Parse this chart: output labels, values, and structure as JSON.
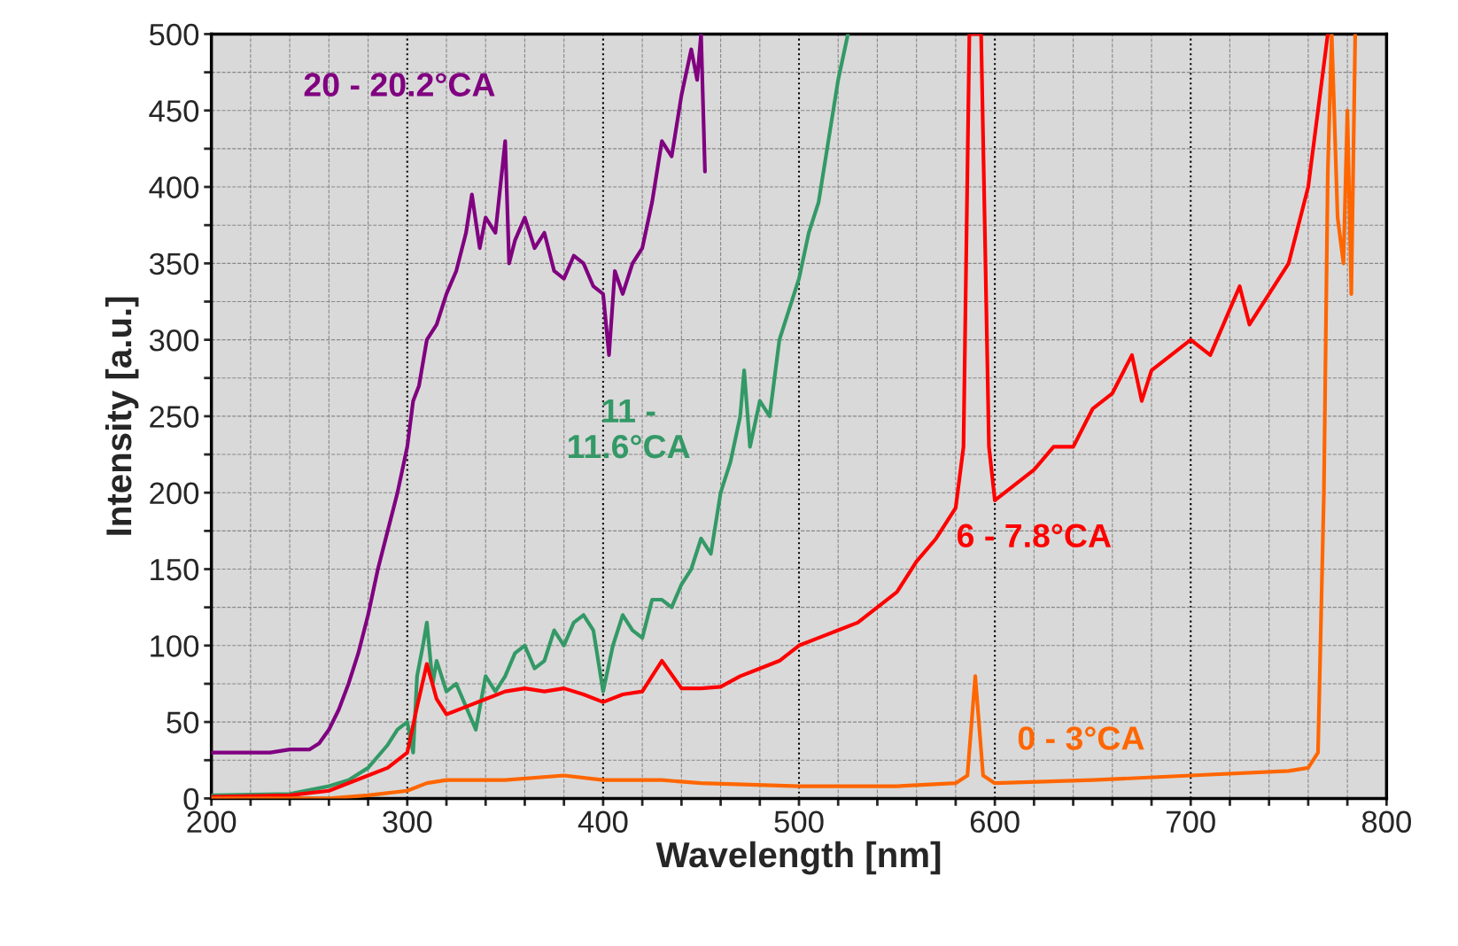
{
  "chart_data": {
    "type": "line",
    "xlabel": "Wavelength [nm]",
    "ylabel": "Intensity [a.u.]",
    "xlim": [
      200,
      800
    ],
    "ylim": [
      0,
      500
    ],
    "xticks": [
      200,
      {
        "value": 220,
        "label": null
      },
      {
        "value": 240,
        "label": null
      },
      {
        "value": 260,
        "label": null
      },
      {
        "value": 280,
        "label": null
      },
      300,
      {
        "value": 320,
        "label": null
      },
      {
        "value": 340,
        "label": null
      },
      {
        "value": 360,
        "label": null
      },
      {
        "value": 380,
        "label": null
      },
      400,
      {
        "value": 420,
        "label": null
      },
      {
        "value": 440,
        "label": null
      },
      {
        "value": 460,
        "label": null
      },
      {
        "value": 480,
        "label": null
      },
      500,
      {
        "value": 520,
        "label": null
      },
      {
        "value": 540,
        "label": null
      },
      {
        "value": 560,
        "label": null
      },
      {
        "value": 580,
        "label": null
      },
      600,
      {
        "value": 620,
        "label": null
      },
      {
        "value": 640,
        "label": null
      },
      {
        "value": 660,
        "label": null
      },
      {
        "value": 680,
        "label": null
      },
      700,
      {
        "value": 720,
        "label": null
      },
      {
        "value": 740,
        "label": null
      },
      {
        "value": 760,
        "label": null
      },
      {
        "value": 780,
        "label": null
      },
      800
    ],
    "yticks": [
      0,
      {
        "value": 25,
        "label": null
      },
      50,
      {
        "value": 75,
        "label": null
      },
      100,
      {
        "value": 125,
        "label": null
      },
      150,
      {
        "value": 175,
        "label": null
      },
      200,
      {
        "value": 225,
        "label": null
      },
      250,
      {
        "value": 275,
        "label": null
      },
      300,
      {
        "value": 325,
        "label": null
      },
      350,
      {
        "value": 375,
        "label": null
      },
      400,
      {
        "value": 425,
        "label": null
      },
      450,
      {
        "value": 475,
        "label": null
      },
      500
    ],
    "grid": true,
    "legend": false,
    "marker": "none",
    "line_style": "solid",
    "series": [
      {
        "name": "20 - 20.2°CA",
        "color": "#800080",
        "x": [
          200,
          230,
          240,
          250,
          255,
          260,
          265,
          270,
          275,
          280,
          285,
          290,
          295,
          300,
          303,
          306,
          310,
          315,
          320,
          325,
          330,
          333,
          337,
          340,
          345,
          350,
          352,
          355,
          360,
          365,
          370,
          375,
          380,
          385,
          390,
          395,
          400,
          403,
          406,
          410,
          415,
          420,
          425,
          430,
          435,
          440,
          445,
          448,
          450,
          452
        ],
        "values": [
          30,
          30,
          32,
          32,
          36,
          45,
          58,
          75,
          95,
          120,
          150,
          175,
          200,
          230,
          260,
          270,
          300,
          310,
          330,
          345,
          370,
          395,
          360,
          380,
          370,
          430,
          350,
          365,
          380,
          360,
          370,
          345,
          340,
          355,
          350,
          335,
          330,
          290,
          345,
          330,
          350,
          360,
          390,
          430,
          420,
          460,
          490,
          470,
          500,
          410
        ]
      },
      {
        "name": "11 - 11.6°CA",
        "color": "#339966",
        "x": [
          200,
          240,
          260,
          270,
          280,
          290,
          295,
          300,
          303,
          305,
          308,
          310,
          313,
          315,
          320,
          325,
          330,
          335,
          340,
          345,
          350,
          355,
          360,
          365,
          370,
          375,
          380,
          385,
          390,
          395,
          400,
          405,
          410,
          415,
          420,
          425,
          430,
          435,
          440,
          445,
          450,
          455,
          460,
          465,
          470,
          472,
          475,
          480,
          485,
          490,
          495,
          500,
          505,
          510,
          515,
          520,
          525
        ],
        "values": [
          2,
          3,
          8,
          12,
          20,
          35,
          45,
          50,
          30,
          80,
          100,
          115,
          75,
          90,
          70,
          75,
          60,
          45,
          80,
          70,
          80,
          95,
          100,
          85,
          90,
          110,
          100,
          115,
          120,
          110,
          70,
          100,
          120,
          110,
          105,
          130,
          130,
          125,
          140,
          150,
          170,
          160,
          200,
          220,
          250,
          280,
          230,
          260,
          250,
          300,
          320,
          340,
          370,
          390,
          430,
          470,
          500
        ]
      },
      {
        "name": "6 - 7.8°CA",
        "color": "#ff0000",
        "x": [
          200,
          240,
          260,
          280,
          290,
          300,
          305,
          310,
          315,
          320,
          330,
          340,
          350,
          360,
          370,
          380,
          390,
          400,
          410,
          420,
          430,
          440,
          450,
          460,
          470,
          480,
          490,
          500,
          510,
          520,
          530,
          540,
          550,
          560,
          570,
          580,
          584,
          587,
          593,
          597,
          600,
          610,
          620,
          630,
          640,
          650,
          660,
          670,
          675,
          680,
          690,
          700,
          710,
          720,
          725,
          730,
          740,
          750,
          760,
          765,
          770
        ],
        "values": [
          1,
          2,
          5,
          15,
          20,
          30,
          60,
          88,
          65,
          55,
          60,
          65,
          70,
          72,
          70,
          72,
          68,
          63,
          68,
          70,
          90,
          72,
          72,
          73,
          80,
          85,
          90,
          100,
          105,
          110,
          115,
          125,
          135,
          155,
          170,
          190,
          230,
          500,
          500,
          230,
          195,
          205,
          215,
          230,
          230,
          255,
          265,
          290,
          260,
          280,
          290,
          300,
          290,
          320,
          335,
          310,
          330,
          350,
          400,
          450,
          500
        ]
      },
      {
        "name": "0 - 3°CA",
        "color": "#ff6600",
        "x": [
          200,
          260,
          280,
          300,
          310,
          320,
          350,
          380,
          400,
          430,
          450,
          500,
          550,
          580,
          586,
          590,
          594,
          600,
          650,
          700,
          750,
          760,
          765,
          768,
          770,
          772,
          775,
          778,
          780,
          782,
          784
        ],
        "values": [
          0,
          0,
          2,
          5,
          10,
          12,
          12,
          15,
          12,
          12,
          10,
          8,
          8,
          10,
          15,
          80,
          15,
          10,
          12,
          15,
          18,
          20,
          30,
          200,
          410,
          500,
          380,
          350,
          450,
          330,
          500
        ]
      }
    ]
  }
}
